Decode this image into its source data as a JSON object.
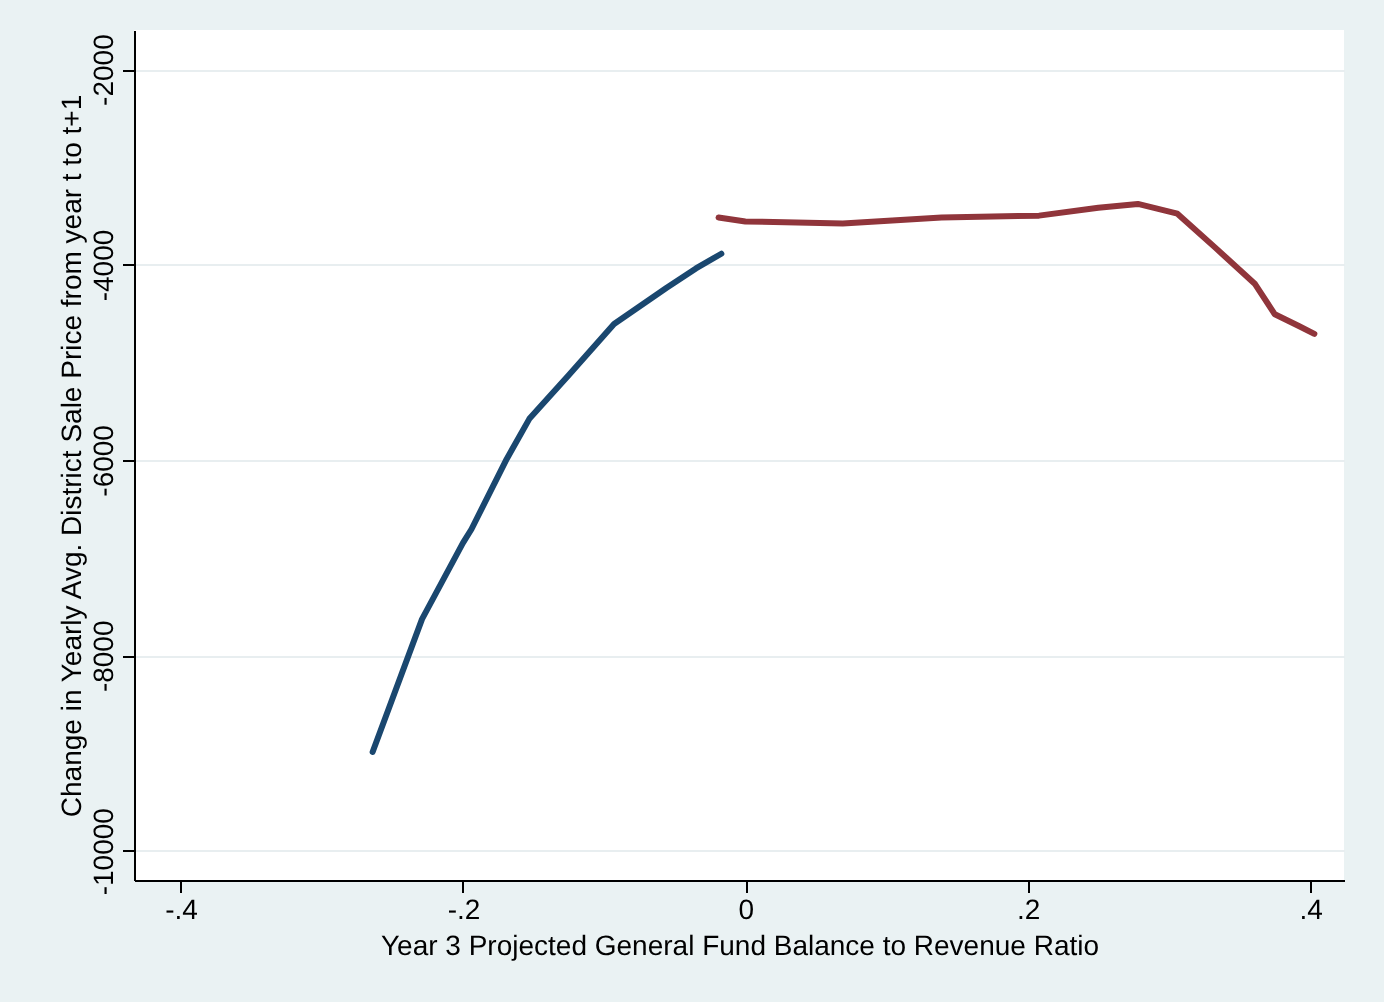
{
  "chart_data": {
    "type": "line",
    "xlabel": "Year 3 Projected General Fund Balance to Revenue Ratio",
    "ylabel": "Change in Yearly Avg. District Sale Price from year t to t+1",
    "xlim": [
      -0.433,
      0.424
    ],
    "ylim": [
      -10300,
      -1600
    ],
    "xticks": [
      {
        "value": -0.4,
        "label": "-.4"
      },
      {
        "value": -0.2,
        "label": "-.2"
      },
      0,
      {
        "value": 0.2,
        "label": ".2"
      },
      {
        "value": 0.4,
        "label": ".4"
      }
    ],
    "yticks": [
      -10000,
      -8000,
      -6000,
      -4000,
      -2000
    ],
    "grid": "y",
    "line_style": "solid",
    "marker": "none",
    "series": [
      {
        "color": "#1a476f",
        "x": [
          -0.264,
          -0.229,
          -0.2,
          -0.194,
          -0.169,
          -0.153,
          -0.125,
          -0.093,
          -0.056,
          -0.035,
          -0.017
        ],
        "values": [
          -8990,
          -7630,
          -6850,
          -6710,
          -5990,
          -5580,
          -5130,
          -4610,
          -4240,
          -4040,
          -3890
        ]
      },
      {
        "color": "#90353b",
        "x": [
          -0.019,
          0,
          0.069,
          0.139,
          0.208,
          0.25,
          0.278,
          0.306,
          0.333,
          0.361,
          0.375,
          0.392,
          0.403
        ],
        "values": [
          -3520,
          -3560,
          -3580,
          -3520,
          -3500,
          -3420,
          -3380,
          -3480,
          -3830,
          -4200,
          -4510,
          -4630,
          -4710
        ]
      }
    ]
  }
}
